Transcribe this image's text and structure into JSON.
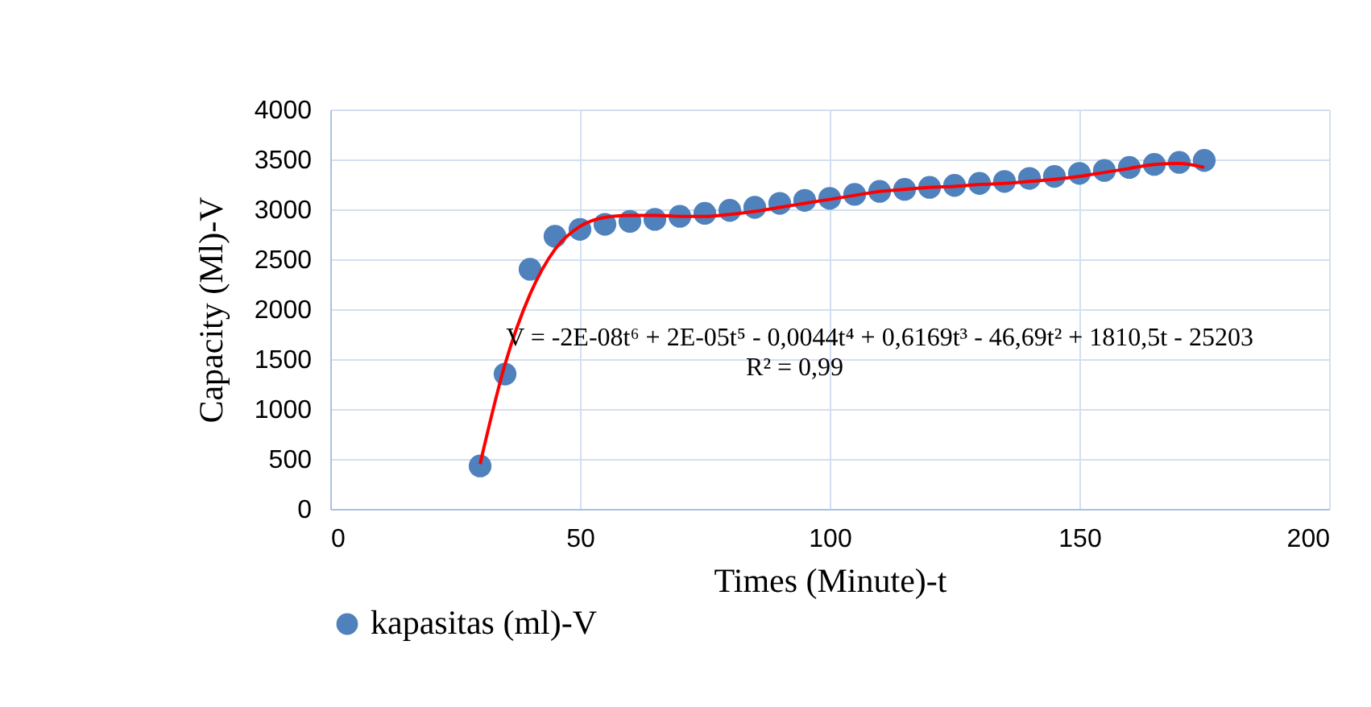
{
  "chart_data": {
    "type": "scatter",
    "xlabel": "Times (Minute)-t",
    "ylabel": "Capacity (Ml)-V",
    "x": [
      30,
      35,
      40,
      45,
      50,
      55,
      60,
      65,
      70,
      75,
      80,
      85,
      90,
      95,
      100,
      105,
      110,
      115,
      120,
      125,
      130,
      135,
      140,
      145,
      150,
      155,
      160,
      165,
      170,
      175
    ],
    "series": [
      {
        "name": "kapasitas (ml)-V",
        "color": "#4f81bd",
        "marker": "circle",
        "values": [
          430,
          1350,
          2400,
          2730,
          2800,
          2850,
          2880,
          2900,
          2930,
          2960,
          2990,
          3020,
          3060,
          3090,
          3110,
          3150,
          3180,
          3200,
          3220,
          3240,
          3260,
          3280,
          3310,
          3330,
          3360,
          3390,
          3420,
          3450,
          3470,
          3490
        ]
      },
      {
        "color": "#ff0000",
        "type": "line",
        "values": [
          450,
          1450,
          2150,
          2600,
          2830,
          2920,
          2940,
          2940,
          2930,
          2930,
          2950,
          2980,
          3020,
          3060,
          3100,
          3140,
          3180,
          3200,
          3220,
          3230,
          3250,
          3260,
          3280,
          3300,
          3330,
          3370,
          3410,
          3450,
          3460,
          3420
        ]
      }
    ],
    "xlim": [
      0,
      200
    ],
    "xticks": [
      0,
      50,
      100,
      150,
      200
    ],
    "ylim": [
      0,
      4000
    ],
    "yticks": [
      0,
      500,
      1000,
      1500,
      2000,
      2500,
      3000,
      3500,
      4000
    ],
    "annotations": [
      "V = -2E-08t⁶ + 2E-05t⁵ - 0,0044t⁴ + 0,6169t³ - 46,69t² + 1810,5t - 25203",
      "R² = 0,99"
    ],
    "grid": true,
    "legend": "bottom"
  }
}
